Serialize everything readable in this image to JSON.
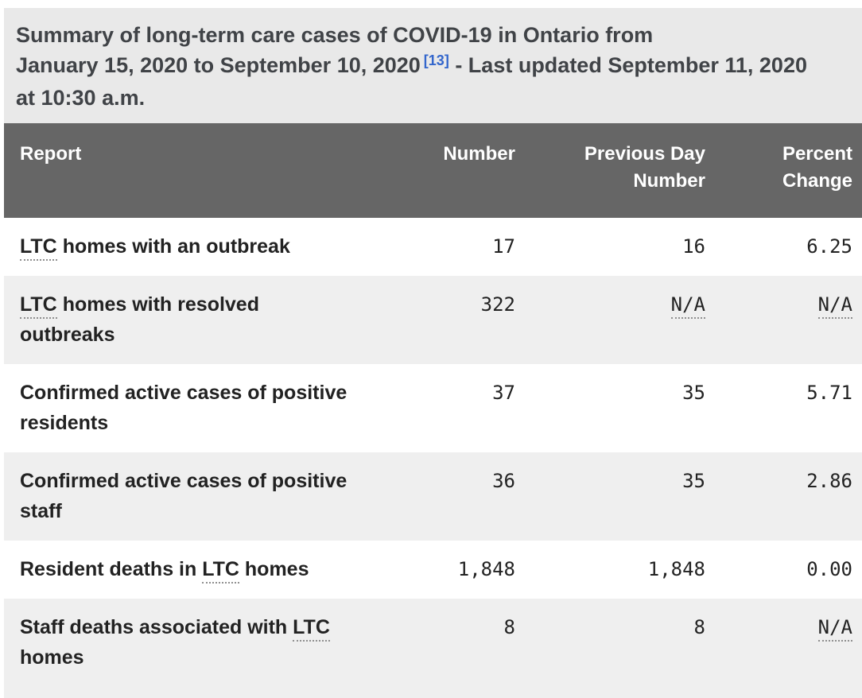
{
  "caption": {
    "line1": "Summary of long-term care cases of COVID-19 in Ontario from",
    "line2_before_ref": "January 15, 2020 to September 10, 2020",
    "ref_label": "[13]",
    "line2_after_ref": " - Last updated September 11, 2020",
    "line3": "at 10:30 a.m."
  },
  "table": {
    "columns": [
      {
        "label": "Report",
        "align": "left"
      },
      {
        "label": "Number",
        "align": "right"
      },
      {
        "label": "Previous Day Number",
        "align": "right"
      },
      {
        "label": "Percent Change",
        "align": "right"
      }
    ],
    "rows": [
      {
        "report": [
          {
            "text": "LTC",
            "abbr": true
          },
          {
            "text": " homes with an outbreak"
          }
        ],
        "number": {
          "text": "17"
        },
        "previous_day_number": {
          "text": "16"
        },
        "percent_change": {
          "text": "6.25"
        }
      },
      {
        "report": [
          {
            "text": "LTC",
            "abbr": true
          },
          {
            "text": " homes with resolved outbreaks"
          }
        ],
        "number": {
          "text": "322"
        },
        "previous_day_number": {
          "text": "N/A",
          "abbr": true
        },
        "percent_change": {
          "text": "N/A",
          "abbr": true
        }
      },
      {
        "report": [
          {
            "text": "Confirmed active cases of positive residents"
          }
        ],
        "number": {
          "text": "37"
        },
        "previous_day_number": {
          "text": "35"
        },
        "percent_change": {
          "text": "5.71"
        }
      },
      {
        "report": [
          {
            "text": "Confirmed active cases of positive staff"
          }
        ],
        "number": {
          "text": "36"
        },
        "previous_day_number": {
          "text": "35"
        },
        "percent_change": {
          "text": "2.86"
        }
      },
      {
        "report": [
          {
            "text": "Resident deaths in "
          },
          {
            "text": "LTC",
            "abbr": true
          },
          {
            "text": " homes"
          }
        ],
        "number": {
          "text": "1,848"
        },
        "previous_day_number": {
          "text": "1,848"
        },
        "percent_change": {
          "text": "0.00"
        }
      },
      {
        "report": [
          {
            "text": "Staff deaths associated with "
          },
          {
            "text": "LTC",
            "abbr": true
          },
          {
            "text": " homes"
          }
        ],
        "number": {
          "text": "8"
        },
        "previous_day_number": {
          "text": "8"
        },
        "percent_change": {
          "text": "N/A",
          "abbr": true
        }
      }
    ]
  },
  "colors": {
    "caption_bg": "#e9e9e9",
    "caption_text": "#404347",
    "header_bg": "#666666",
    "header_text": "#ffffff",
    "row_alt_bg": "#efefef",
    "body_text": "#222222",
    "ref_link_blue": "#3366cc",
    "abbr_dotted": "#8f8f8f"
  }
}
